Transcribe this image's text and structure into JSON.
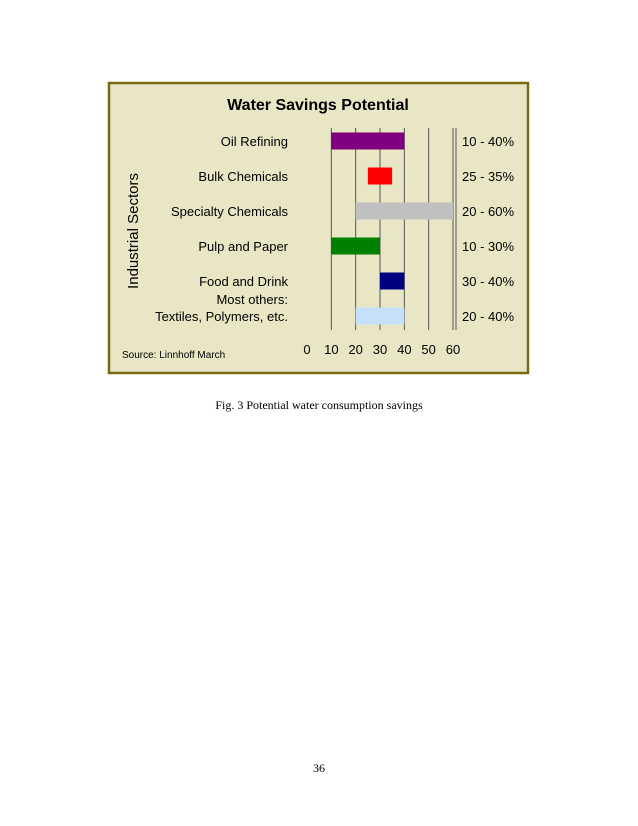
{
  "caption": "Fig. 3 Potential water consumption savings",
  "page_number": "36",
  "colors": {
    "chart_background": "#e8e6c4",
    "chart_border": "#7a6a16",
    "grid": "#555555"
  },
  "chart_data": {
    "type": "bar",
    "orientation": "horizontal-range",
    "title": "Water Savings Potential",
    "ylabel": "Industrial Sectors",
    "xlabel": "",
    "xlim": [
      0,
      60
    ],
    "xticks": [
      0,
      10,
      20,
      30,
      40,
      50,
      60
    ],
    "grid": true,
    "source": "Source: Linnhoff March",
    "categories": [
      {
        "lines": [
          "Oil Refining"
        ],
        "start": 10,
        "end": 40,
        "range_label": "10 - 40%",
        "color": "#800080"
      },
      {
        "lines": [
          "Bulk Chemicals"
        ],
        "start": 25,
        "end": 35,
        "range_label": "25 - 35%",
        "color": "#ff0000"
      },
      {
        "lines": [
          "Specialty Chemicals"
        ],
        "start": 20,
        "end": 60,
        "range_label": "20 - 60%",
        "color": "#c0c0c0"
      },
      {
        "lines": [
          "Pulp and Paper"
        ],
        "start": 10,
        "end": 30,
        "range_label": "10 - 30%",
        "color": "#008000"
      },
      {
        "lines": [
          "Food and Drink"
        ],
        "start": 30,
        "end": 40,
        "range_label": "30 - 40%",
        "color": "#000080"
      },
      {
        "lines": [
          "Most others:",
          "Textiles, Polymers, etc."
        ],
        "start": 20,
        "end": 40,
        "range_label": "20 - 40%",
        "color": "#c6e0f8"
      }
    ]
  }
}
